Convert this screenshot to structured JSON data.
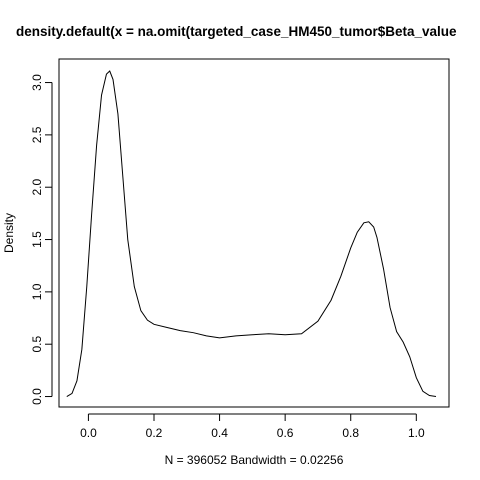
{
  "chart_data": {
    "type": "line",
    "title": "density.default(x = na.omit(targeted_case_HM450_tumor$Beta_value",
    "xlabel": "N = 396052   Bandwidth = 0.02256",
    "ylabel": "Density",
    "xlim": [
      -0.0897,
      1.0997
    ],
    "ylim": [
      -0.1,
      3.225
    ],
    "x_ticks": [
      0.0,
      0.2,
      0.4,
      0.6,
      0.8,
      1.0
    ],
    "x_tick_labels": [
      "0.0",
      "0.2",
      "0.4",
      "0.6",
      "0.8",
      "1.0"
    ],
    "y_ticks": [
      0.0,
      0.5,
      1.0,
      1.5,
      2.0,
      2.5,
      3.0
    ],
    "y_tick_labels": [
      "0.0",
      "0.5",
      "1.0",
      "1.5",
      "2.0",
      "2.5",
      "3.0"
    ],
    "grid": false,
    "series": [
      {
        "x": [
          -0.066,
          -0.05,
          -0.035,
          -0.02,
          -0.005,
          0.01,
          0.025,
          0.04,
          0.055,
          0.065,
          0.075,
          0.09,
          0.105,
          0.12,
          0.14,
          0.16,
          0.18,
          0.2,
          0.24,
          0.28,
          0.32,
          0.36,
          0.4,
          0.45,
          0.5,
          0.55,
          0.6,
          0.65,
          0.7,
          0.74,
          0.77,
          0.8,
          0.82,
          0.84,
          0.855,
          0.87,
          0.88,
          0.9,
          0.92,
          0.94,
          0.96,
          0.98,
          1.0,
          1.02,
          1.04,
          1.06
        ],
        "y": [
          0.0,
          0.03,
          0.15,
          0.45,
          1.05,
          1.75,
          2.4,
          2.88,
          3.08,
          3.11,
          3.03,
          2.7,
          2.1,
          1.5,
          1.05,
          0.82,
          0.73,
          0.69,
          0.66,
          0.63,
          0.61,
          0.58,
          0.56,
          0.58,
          0.59,
          0.6,
          0.59,
          0.6,
          0.72,
          0.92,
          1.15,
          1.42,
          1.57,
          1.66,
          1.67,
          1.62,
          1.52,
          1.22,
          0.85,
          0.62,
          0.52,
          0.38,
          0.18,
          0.05,
          0.01,
          0.0
        ]
      }
    ]
  }
}
